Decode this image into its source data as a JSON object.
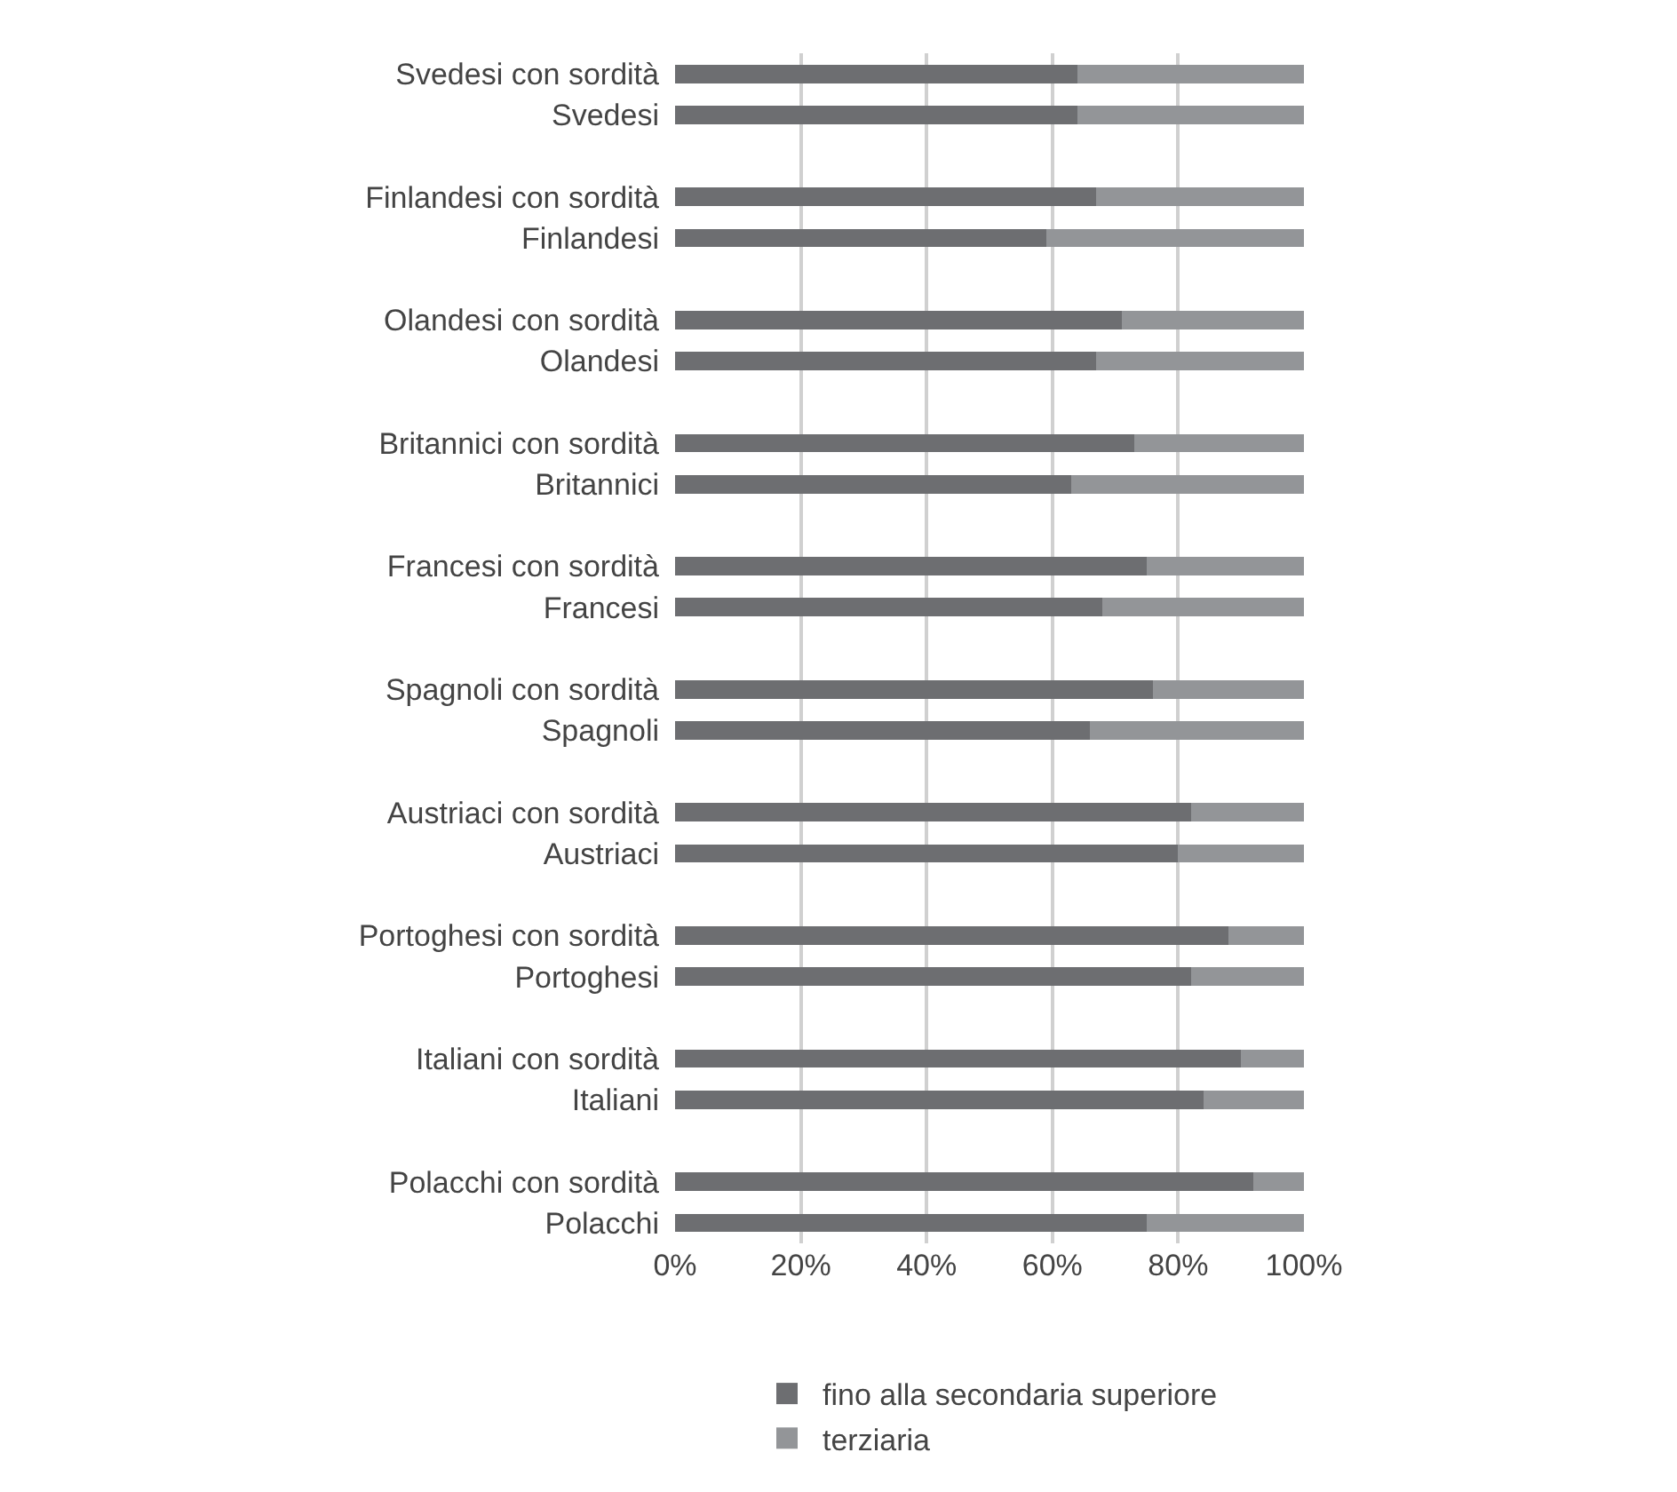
{
  "chart_data": {
    "type": "bar",
    "orientation": "horizontal",
    "stacked": true,
    "categories": [
      "Svedesi con sordità",
      "Svedesi",
      null,
      "Finlandesi con sordità",
      "Finlandesi",
      null,
      "Olandesi con sordità",
      "Olandesi",
      null,
      "Britannici con sordità",
      "Britannici",
      null,
      "Francesi con sordità",
      "Francesi",
      null,
      "Spagnoli con sordità",
      "Spagnoli",
      null,
      "Austriaci con sordità",
      "Austriaci",
      null,
      "Portoghesi con sordità",
      "Portoghesi",
      null,
      "Italiani con sordità",
      "Italiani",
      null,
      "Polacchi con sordità",
      "Polacchi"
    ],
    "series": [
      {
        "name": "fino alla secondaria superiore",
        "color": "#6d6e71",
        "values": [
          64,
          64,
          null,
          67,
          59,
          null,
          71,
          67,
          null,
          73,
          63,
          null,
          75,
          68,
          null,
          76,
          66,
          null,
          82,
          80,
          null,
          88,
          82,
          null,
          90,
          84,
          null,
          92,
          75
        ]
      },
      {
        "name": "terziaria",
        "color": "#939598",
        "values": [
          36,
          36,
          null,
          33,
          41,
          null,
          29,
          33,
          null,
          27,
          37,
          null,
          25,
          32,
          null,
          24,
          34,
          null,
          18,
          20,
          null,
          12,
          18,
          null,
          10,
          16,
          null,
          8,
          25
        ]
      }
    ],
    "xlim": [
      0,
      100
    ],
    "xticks": [
      {
        "value": 0,
        "label": "0%"
      },
      {
        "value": 20,
        "label": "20%"
      },
      {
        "value": 40,
        "label": "40%"
      },
      {
        "value": 60,
        "label": "60%"
      },
      {
        "value": 80,
        "label": "80%"
      },
      {
        "value": 100,
        "label": "100%"
      }
    ],
    "grid": "x",
    "legend": "bottom"
  }
}
